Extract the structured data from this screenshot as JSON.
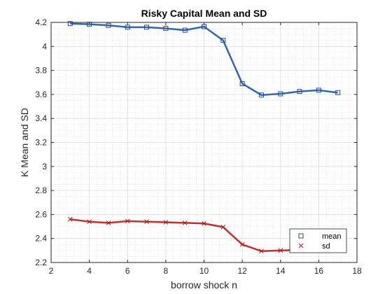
{
  "chart_data": {
    "type": "line",
    "title": "Risky Capital Mean and SD",
    "xlabel": "borrow shock n",
    "ylabel": "K Mean and SD",
    "xlim": [
      2,
      18
    ],
    "ylim": [
      2.2,
      4.2
    ],
    "xticks": [
      2,
      4,
      6,
      8,
      10,
      12,
      14,
      16,
      18
    ],
    "yticks": [
      2.2,
      2.4,
      2.6,
      2.8,
      3,
      3.2,
      3.4,
      3.6,
      3.8,
      4,
      4.2
    ],
    "grid": true,
    "minor_grid": true,
    "legend_position": "bottom-right",
    "x": [
      3,
      4,
      5,
      6,
      7,
      8,
      9,
      10,
      11,
      12,
      13,
      14,
      15,
      16,
      17
    ],
    "series": [
      {
        "name": "mean",
        "color": "#3366aa",
        "marker": "square",
        "values": [
          4.19,
          4.185,
          4.175,
          4.16,
          4.16,
          4.15,
          4.135,
          4.165,
          4.05,
          3.69,
          3.595,
          3.605,
          3.625,
          3.635,
          3.615
        ]
      },
      {
        "name": "sd",
        "color": "#c03030",
        "marker": "x",
        "values": [
          2.56,
          2.54,
          2.53,
          2.545,
          2.54,
          2.535,
          2.53,
          2.525,
          2.495,
          2.35,
          2.295,
          2.3,
          2.305,
          2.305,
          2.31
        ]
      }
    ]
  }
}
